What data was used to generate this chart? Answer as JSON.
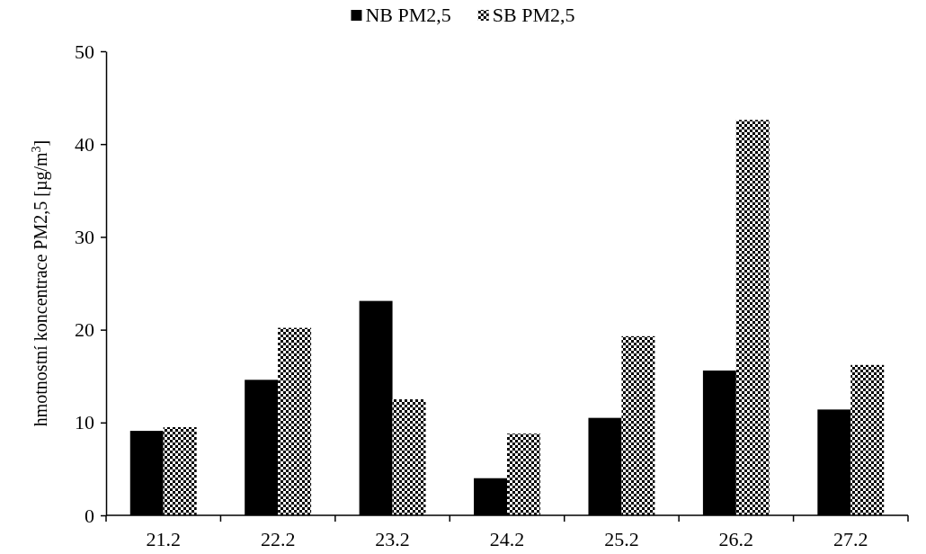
{
  "chart_data": {
    "type": "bar",
    "ylabel": "hmotnostní koncentrace PM2,5 [µg/m$^{3}$]",
    "categories": [
      "21.2",
      "22.2",
      "23.2",
      "24.2",
      "25.2",
      "26.2",
      "27.2"
    ],
    "series": [
      {
        "name": "NB PM2,5",
        "color": "#000000",
        "values": [
          9.1,
          14.6,
          23.1,
          4.0,
          10.5,
          15.6,
          11.4
        ]
      },
      {
        "name": "SB PM2,5",
        "color": "#000000",
        "values": [
          9.5,
          20.2,
          12.5,
          8.8,
          19.3,
          42.6,
          16.2
        ]
      }
    ],
    "ylim": [
      0,
      50
    ],
    "yticks": [
      0,
      10,
      20,
      30,
      40,
      50
    ],
    "legend": "top"
  }
}
